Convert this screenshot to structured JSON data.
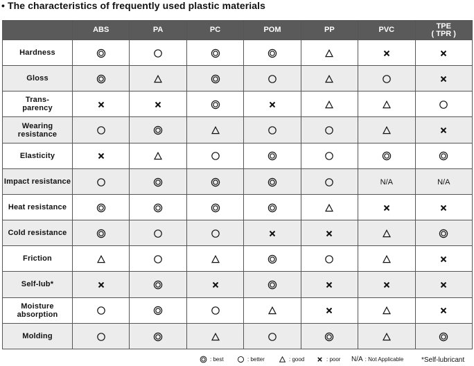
{
  "title": "• The characteristics of frequently used plastic materials",
  "columns": [
    "ABS",
    "PA",
    "PC",
    "POM",
    "PP",
    "PVC",
    "TPE ( TPR )"
  ],
  "rows": [
    {
      "label": "Hardness",
      "values": [
        "best",
        "better",
        "best",
        "best",
        "good",
        "poor",
        "poor"
      ]
    },
    {
      "label": "Gloss",
      "values": [
        "best",
        "good",
        "best",
        "better",
        "good",
        "better",
        "poor"
      ]
    },
    {
      "label": "Trans- parency",
      "values": [
        "poor",
        "poor",
        "best",
        "poor",
        "good",
        "good",
        "better"
      ]
    },
    {
      "label": "Wearing resistance",
      "values": [
        "better",
        "best",
        "good",
        "better",
        "better",
        "good",
        "poor"
      ]
    },
    {
      "label": "Elasticity",
      "values": [
        "poor",
        "good",
        "better",
        "best",
        "better",
        "best",
        "best"
      ]
    },
    {
      "label": "Impact resistance",
      "values": [
        "better",
        "best",
        "best",
        "best",
        "better",
        "na",
        "na"
      ]
    },
    {
      "label": "Heat resistance",
      "values": [
        "best",
        "best",
        "best",
        "best",
        "good",
        "poor",
        "poor"
      ]
    },
    {
      "label": "Cold resistance",
      "values": [
        "best",
        "better",
        "better",
        "poor",
        "poor",
        "good",
        "best"
      ]
    },
    {
      "label": "Friction",
      "values": [
        "good",
        "better",
        "good",
        "best",
        "better",
        "good",
        "poor"
      ]
    },
    {
      "label": "Self-lub*",
      "values": [
        "poor",
        "best",
        "poor",
        "best",
        "poor",
        "poor",
        "poor"
      ]
    },
    {
      "label": "Moisture absorption",
      "values": [
        "better",
        "best",
        "better",
        "good",
        "poor",
        "good",
        "poor"
      ]
    },
    {
      "label": "Molding",
      "values": [
        "better",
        "best",
        "good",
        "better",
        "best",
        "good",
        "best"
      ]
    }
  ],
  "na_text": "N/A",
  "legend": {
    "best": ": best",
    "better": ": better",
    "good": ": good",
    "poor": ": poor",
    "na_label": "N/A",
    "na": ": Not Applicable"
  },
  "footnote": "*Self-lubricant",
  "icons": {
    "best": "double-circle-icon",
    "better": "circle-icon",
    "good": "triangle-icon",
    "poor": "cross-icon"
  }
}
